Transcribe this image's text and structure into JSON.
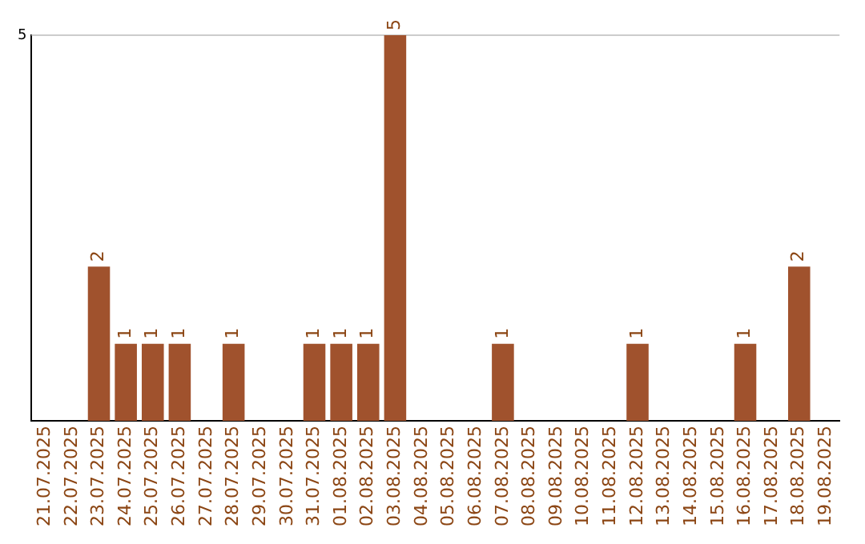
{
  "chart_data": {
    "type": "bar",
    "categories": [
      "21.07.2025",
      "22.07.2025",
      "23.07.2025",
      "24.07.2025",
      "25.07.2025",
      "26.07.2025",
      "27.07.2025",
      "28.07.2025",
      "29.07.2025",
      "30.07.2025",
      "31.07.2025",
      "01.08.2025",
      "02.08.2025",
      "03.08.2025",
      "04.08.2025",
      "05.08.2025",
      "06.08.2025",
      "07.08.2025",
      "08.08.2025",
      "09.08.2025",
      "10.08.2025",
      "11.08.2025",
      "12.08.2025",
      "13.08.2025",
      "14.08.2025",
      "15.08.2025",
      "16.08.2025",
      "17.08.2025",
      "18.08.2025",
      "19.08.2025"
    ],
    "values": [
      0,
      0,
      2,
      1,
      1,
      1,
      0,
      1,
      0,
      0,
      1,
      1,
      1,
      5,
      0,
      0,
      0,
      1,
      0,
      0,
      0,
      0,
      1,
      0,
      0,
      0,
      1,
      0,
      2,
      0
    ],
    "value_labels": [
      null,
      null,
      "2",
      "1",
      "1",
      "1",
      null,
      "1",
      null,
      null,
      "1",
      "1",
      "1",
      "5",
      null,
      null,
      null,
      "1",
      null,
      null,
      null,
      null,
      "1",
      null,
      null,
      null,
      "1",
      null,
      "2",
      null
    ],
    "color": "#a0522d",
    "ylim": [
      0,
      5
    ],
    "yticks": [
      5
    ],
    "ref_lines": [
      {
        "axis": "y",
        "value": 5,
        "color": "#cccccc"
      }
    ]
  }
}
